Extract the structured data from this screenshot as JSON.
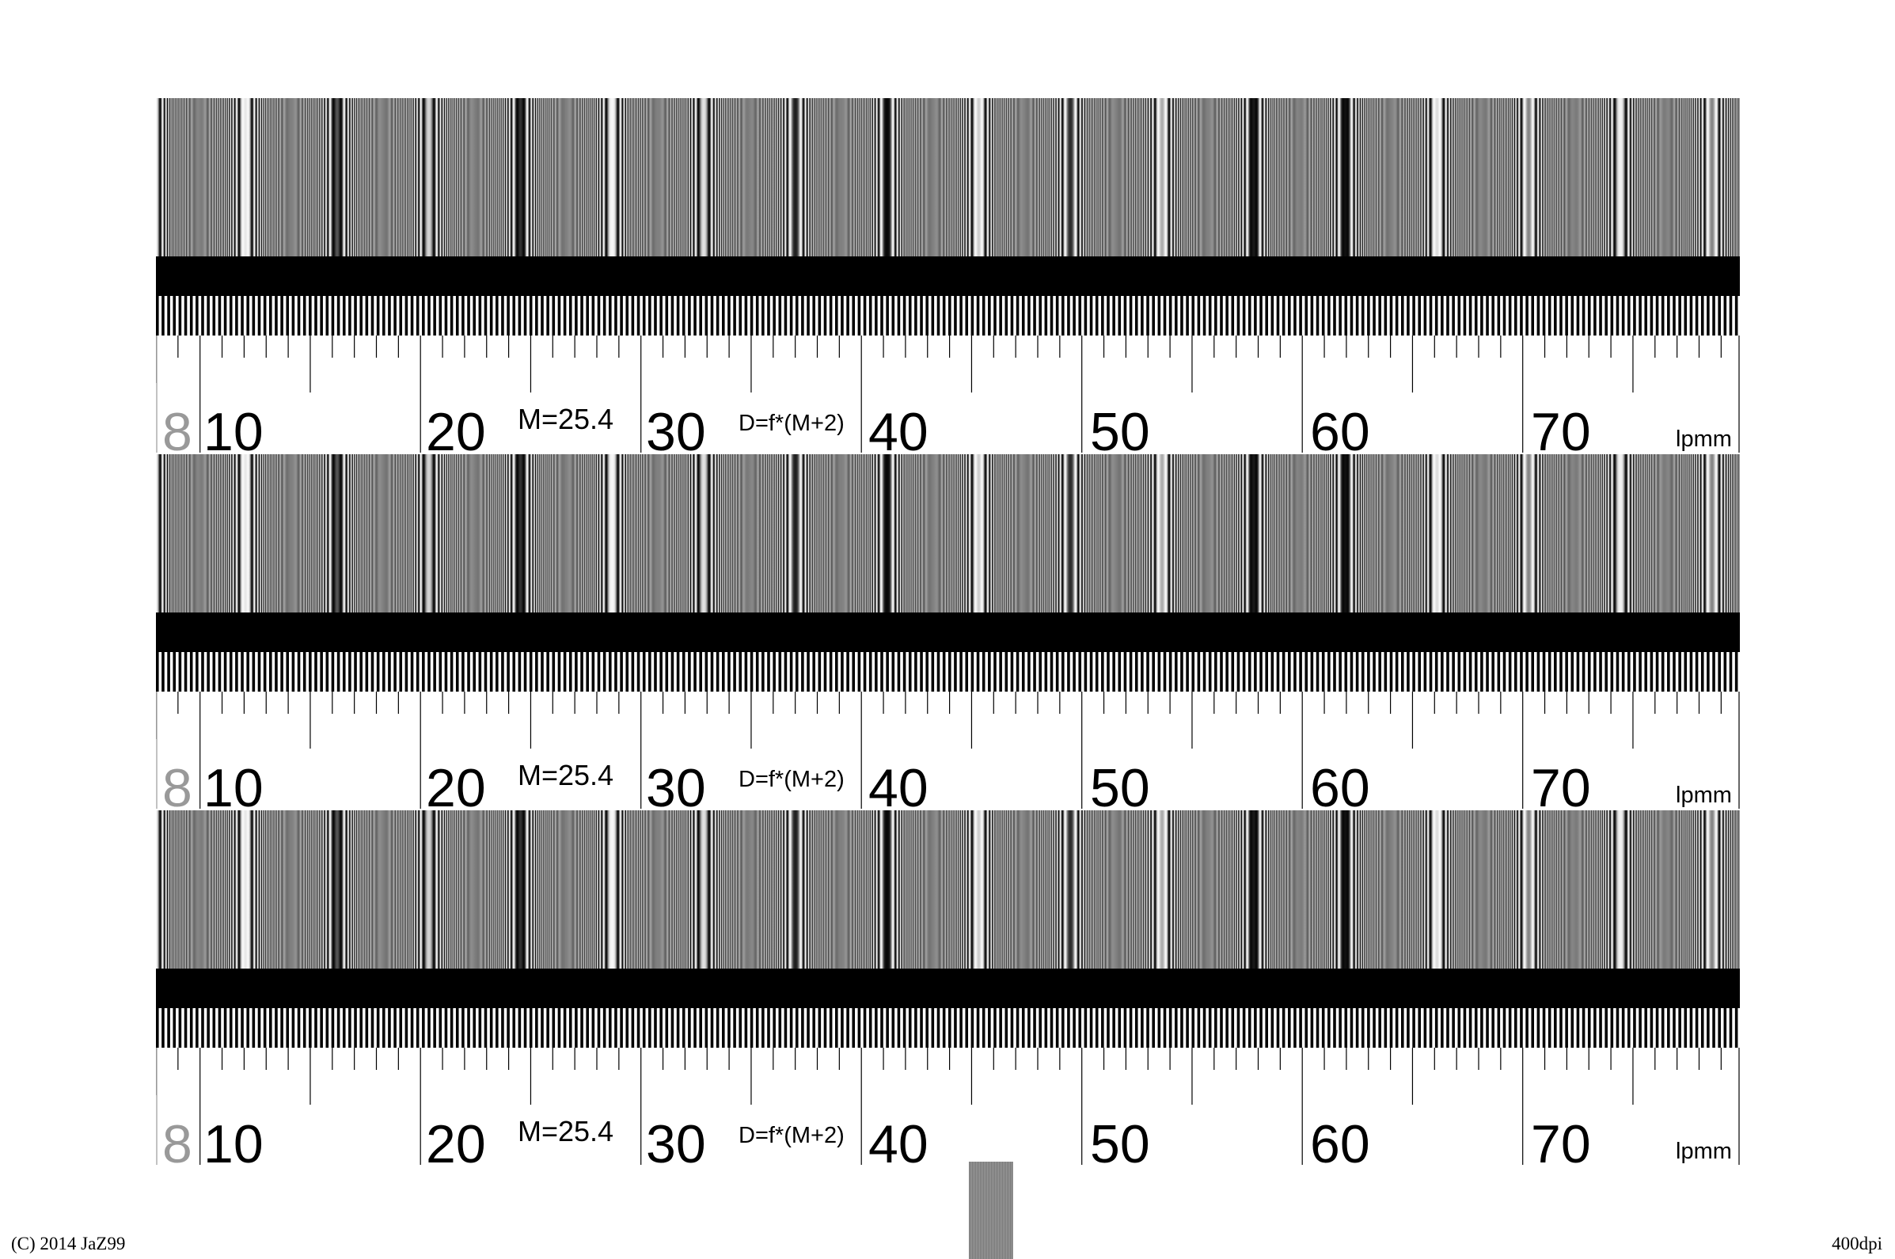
{
  "chart": {
    "block_count": 3,
    "sweep_start_lpmm": 8,
    "sweep_end_lpmm": 80,
    "scale_labels": [
      {
        "text": "8",
        "value": 8,
        "muted": true
      },
      {
        "text": "10",
        "value": 10
      },
      {
        "text": "20",
        "value": 20
      },
      {
        "text": "30",
        "value": 30
      },
      {
        "text": "40",
        "value": 40
      },
      {
        "text": "50",
        "value": 50
      },
      {
        "text": "60",
        "value": 60
      },
      {
        "text": "70",
        "value": 70
      }
    ],
    "magnification_note": "M=25.4",
    "distance_formula": "D=f*(M+2)",
    "unit": "lpmm"
  },
  "footer": {
    "copyright": "(C) 2014 JaZ99",
    "resolution": "400dpi"
  },
  "colors": {
    "background": "#ffffff",
    "ink": "#000000",
    "muted_label": "#999999",
    "gray_target": "#888888"
  }
}
